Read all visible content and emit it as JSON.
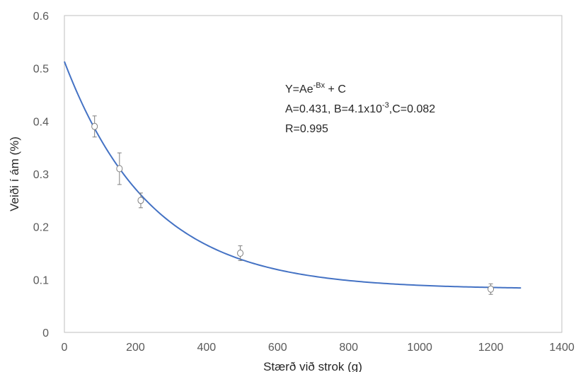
{
  "chart_data": {
    "type": "scatter",
    "xlabel": "Stærð við strok (g)",
    "ylabel": "Veiði í ám (%)",
    "xlim": [
      0,
      1400
    ],
    "ylim": [
      0,
      0.6
    ],
    "x_ticks": [
      0,
      200,
      400,
      600,
      800,
      1000,
      1200,
      1400
    ],
    "y_ticks": [
      0,
      0.1,
      0.2,
      0.3,
      0.4,
      0.5,
      0.6
    ],
    "x_tick_labels": [
      "0",
      "200",
      "400",
      "600",
      "800",
      "1000",
      "1200",
      "1400"
    ],
    "y_tick_labels": [
      "0",
      "0.1",
      "0.2",
      "0.3",
      "0.4",
      "0.5",
      "0.6"
    ],
    "grid": false,
    "points": [
      {
        "x": 85,
        "y": 0.39,
        "err": 0.02
      },
      {
        "x": 155,
        "y": 0.31,
        "err": 0.03
      },
      {
        "x": 215,
        "y": 0.25,
        "err": 0.014
      },
      {
        "x": 495,
        "y": 0.15,
        "err": 0.014
      },
      {
        "x": 1200,
        "y": 0.082,
        "err": 0.01
      }
    ],
    "fit": {
      "formula": "Y=Ae-Bx + C",
      "A": 0.431,
      "B": 0.0041,
      "C": 0.082,
      "x_range": [
        0,
        1285
      ],
      "color": "#4472C4"
    },
    "annotation": {
      "line1_base": "Y=Ae",
      "line1_sup": "-Bx",
      "line1_tail": " + C",
      "line2_base": "A=0.431, B=4.1x10",
      "line2_sup": "-3",
      "line2_tail": ",C=0.082",
      "line3": "R=0.995"
    },
    "marker_color": "#7f7f7f",
    "axis_color": "#bfbfbf"
  }
}
